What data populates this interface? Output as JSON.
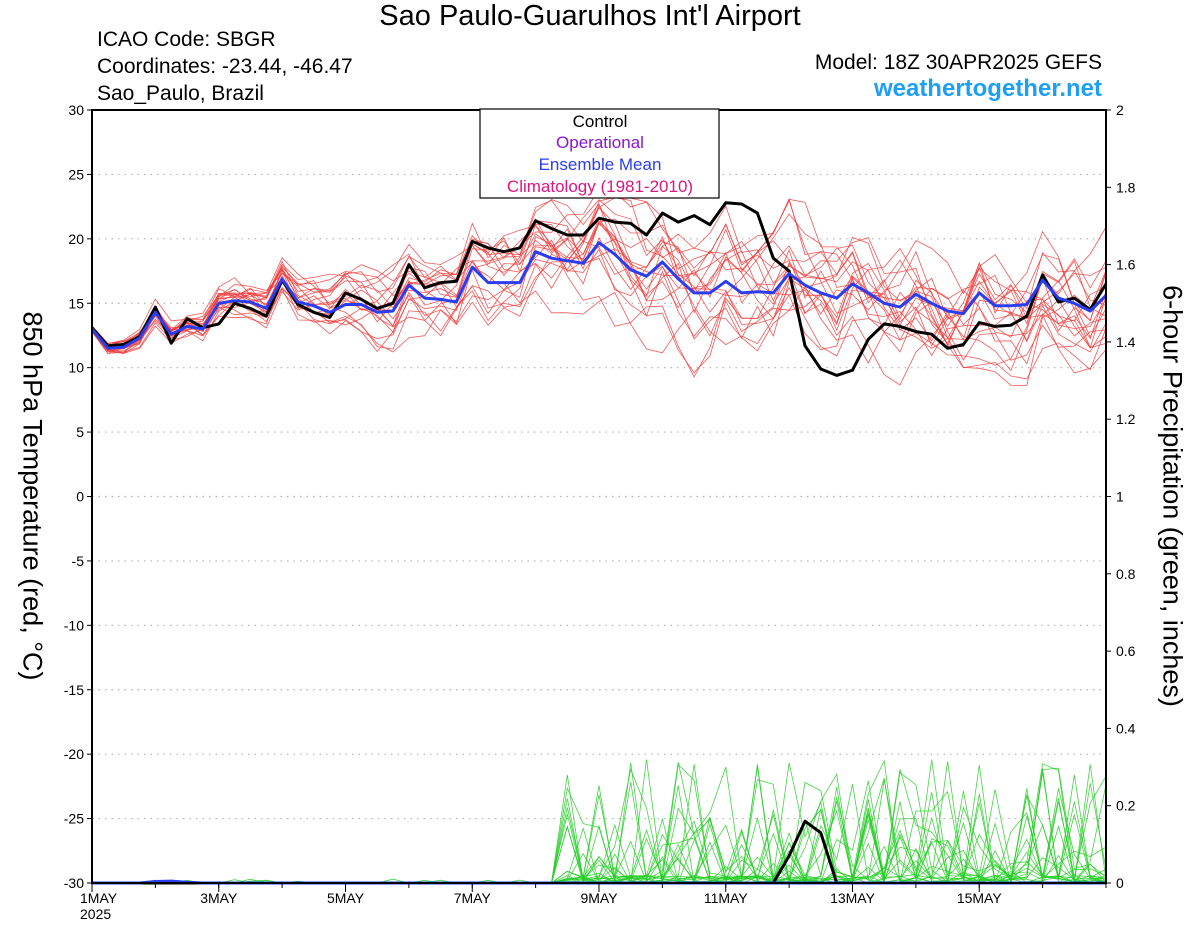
{
  "header": {
    "title": "Sao Paulo-Guarulhos Int'l Airport",
    "icao": "ICAO Code: SBGR",
    "coordinates": "Coordinates: -23.44, -46.47",
    "location": "Sao_Paulo, Brazil",
    "model": "Model: 18Z 30APR2025 GEFS",
    "site": "weathertogether.net"
  },
  "colors": {
    "control": "#000000",
    "operational": "#8a14d6",
    "ensemble_mean": "#2a3ef0",
    "climatology": "#e0157e",
    "members_temp": "#f23a3a",
    "members_precip": "#22cc22",
    "site": "#1e9ff2"
  },
  "chart_data": {
    "type": "line",
    "title": "Sao Paulo-Guarulhos Int'l Airport",
    "ylabel": "850 hPa Temperature (red, °C)",
    "ylabel_right": "6-hour Precipitation (green, inches)",
    "xlabel": "",
    "ylim": [
      -30,
      30
    ],
    "ylim_right": [
      0,
      2
    ],
    "y_ticks": [
      "30",
      "25",
      "20",
      "15",
      "10",
      "5",
      "0",
      "-5",
      "-10",
      "-15",
      "-20",
      "-25",
      "-30"
    ],
    "y_ticks_right": [
      "2",
      "1.8",
      "1.6",
      "1.4",
      "1.2",
      "1",
      "0.8",
      "0.6",
      "0.4",
      "0.2",
      "0"
    ],
    "x_ticks": [
      "1MAY",
      "3MAY",
      "5MAY",
      "7MAY",
      "9MAY",
      "11MAY",
      "13MAY",
      "15MAY"
    ],
    "x_year": "2025",
    "x_range_days": [
      1,
      17
    ],
    "step_days": 0.25,
    "grid": "horizontal dotted",
    "legend": {
      "placement": "top-center",
      "entries": [
        "Control",
        "Operational",
        "Ensemble Mean",
        "Climatology (1981-2010)"
      ]
    },
    "series": [
      {
        "name": "Control",
        "axis": "temperature",
        "values": [
          13.1,
          11.7,
          11.8,
          12.4,
          14.7,
          11.9,
          13.8,
          13.1,
          13.4,
          15.0,
          14.6,
          14.0,
          16.8,
          14.9,
          14.3,
          13.9,
          15.8,
          15.3,
          14.6,
          15.0,
          18.0,
          16.2,
          16.6,
          16.7,
          19.8,
          19.3,
          19.0,
          19.3,
          21.4,
          20.8,
          20.3,
          20.3,
          21.6,
          21.3,
          21.2,
          20.3,
          22.0,
          21.3,
          21.8,
          21.1,
          22.8,
          22.7,
          22.0,
          18.5,
          17.5,
          11.7,
          9.9,
          9.4,
          9.8,
          12.2,
          13.4,
          13.2,
          12.8,
          12.6,
          11.5,
          11.8,
          13.5,
          13.2,
          13.3,
          14.0,
          17.2,
          15.1,
          15.4,
          14.5,
          16.5
        ]
      },
      {
        "name": "Ensemble Mean",
        "axis": "temperature",
        "values": [
          13.0,
          11.5,
          11.6,
          12.3,
          14.3,
          12.6,
          13.2,
          13.0,
          15.0,
          15.2,
          15.1,
          14.6,
          16.9,
          15.1,
          14.8,
          14.3,
          14.9,
          14.9,
          14.3,
          14.4,
          16.4,
          15.4,
          15.3,
          15.1,
          17.8,
          16.6,
          16.6,
          16.6,
          19.0,
          18.5,
          18.3,
          18.1,
          19.7,
          18.8,
          17.6,
          17.1,
          18.2,
          16.9,
          15.8,
          15.8,
          16.7,
          15.8,
          15.9,
          15.8,
          17.3,
          16.4,
          15.8,
          15.4,
          16.5,
          15.8,
          15.0,
          14.7,
          15.7,
          15.0,
          14.4,
          14.2,
          15.8,
          14.8,
          14.8,
          14.9,
          16.8,
          15.4,
          15.0,
          14.4,
          15.6
        ]
      },
      {
        "name": "Control",
        "axis": "precipitation",
        "values": [
          0,
          0,
          0,
          0,
          0,
          0,
          0,
          0,
          0,
          0,
          0,
          0,
          0,
          0,
          0,
          0,
          0,
          0,
          0,
          0,
          0,
          0,
          0,
          0,
          0,
          0,
          0,
          0,
          0,
          0,
          0,
          0,
          0,
          0,
          0,
          0,
          0,
          0,
          0,
          0,
          0,
          0,
          0,
          0,
          0.07,
          0.16,
          0.13,
          0,
          0,
          0,
          0,
          0,
          0,
          0,
          0,
          0,
          0,
          0,
          0,
          0,
          0,
          0,
          0,
          0,
          0
        ]
      },
      {
        "name": "Ensemble Mean",
        "axis": "precipitation",
        "values": [
          0,
          0,
          0,
          0,
          0.004,
          0.005,
          0.002,
          0,
          0,
          0,
          0,
          0,
          0,
          0,
          0,
          0,
          0,
          0,
          0,
          0,
          0,
          0,
          0,
          0,
          0,
          0,
          0,
          0,
          0,
          0,
          0,
          0,
          0,
          0,
          0,
          0,
          0,
          0,
          0,
          0,
          0,
          0,
          0,
          0,
          0,
          0,
          0,
          0,
          0,
          0,
          0,
          0,
          0,
          0,
          0,
          0,
          0,
          0,
          0,
          0,
          0,
          0,
          0,
          0,
          0
        ]
      }
    ]
  }
}
